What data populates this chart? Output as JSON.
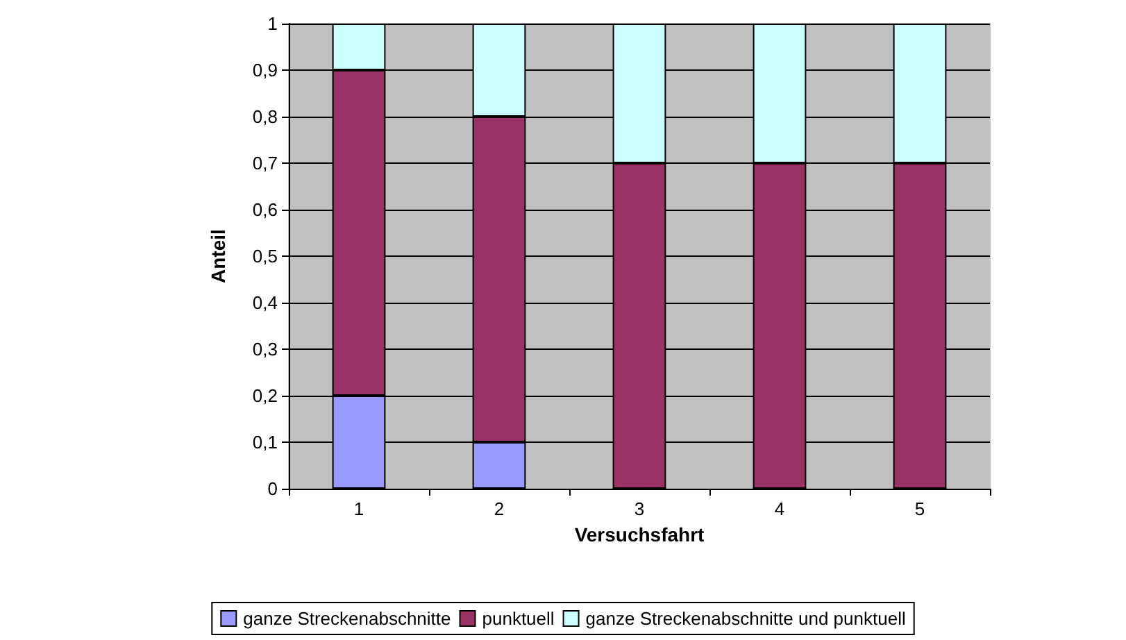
{
  "chart_data": {
    "type": "bar",
    "stacked": true,
    "xlabel": "Versuchsfahrt",
    "ylabel": "Anteil",
    "categories": [
      "1",
      "2",
      "3",
      "4",
      "5"
    ],
    "series": [
      {
        "name": "ganze Streckenabschnitte",
        "color": "#9999ff",
        "values": [
          0.2,
          0.1,
          0,
          0,
          0
        ]
      },
      {
        "name": "punktuell",
        "color": "#993366",
        "values": [
          0.7,
          0.7,
          0.7,
          0.7,
          0.7
        ]
      },
      {
        "name": "ganze Streckenabschnitte und punktuell",
        "color": "#ccffff",
        "values": [
          0.1,
          0.2,
          0.3,
          0.3,
          0.3
        ]
      }
    ],
    "ylim": [
      0,
      1
    ],
    "yticks": [
      0,
      {
        "value": 0.1,
        "label": "0,1"
      },
      {
        "value": 0.2,
        "label": "0,2"
      },
      {
        "value": 0.3,
        "label": "0,3"
      },
      {
        "value": 0.4,
        "label": "0,4"
      },
      {
        "value": 0.5,
        "label": "0,5"
      },
      {
        "value": 0.6,
        "label": "0,6"
      },
      {
        "value": 0.7,
        "label": "0,7"
      },
      {
        "value": 0.8,
        "label": "0,8"
      },
      {
        "value": 0.9,
        "label": "0,9"
      },
      1
    ],
    "grid": "y",
    "legend": "bottom"
  }
}
